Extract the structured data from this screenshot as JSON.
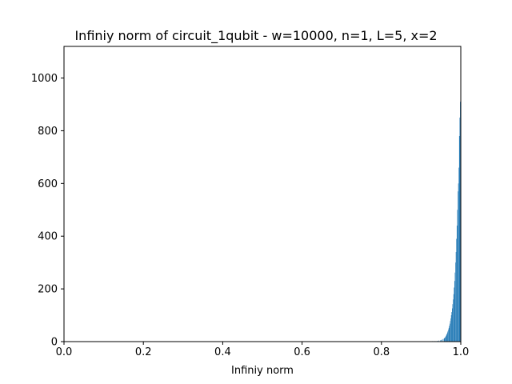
{
  "chart_data": {
    "type": "bar",
    "title": "Infiniy norm of circuit_1qubit - w=10000, n=1, L=5, x=2",
    "xlabel": "Infiniy norm",
    "ylabel": "",
    "xlim": [
      0.0,
      1.0
    ],
    "ylim": [
      0,
      1120
    ],
    "x_ticks": [
      "0.0",
      "0.2",
      "0.4",
      "0.6",
      "0.8",
      "1.0"
    ],
    "y_ticks": [
      "0",
      "200",
      "400",
      "600",
      "800",
      "1000"
    ],
    "grid": false,
    "legend": "none",
    "bar_color": "#1f77b4",
    "bin_width": 0.0012,
    "series": [
      {
        "x": [
          0.9232,
          0.9292,
          0.9352,
          0.9412,
          0.9448,
          0.9484,
          0.9508,
          0.9532,
          0.9556,
          0.958,
          0.9592,
          0.9604,
          0.9616,
          0.9628,
          0.964,
          0.9652,
          0.9664,
          0.9676,
          0.9688,
          0.97,
          0.9712,
          0.9724,
          0.9736,
          0.9748,
          0.976,
          0.9772,
          0.9784,
          0.9796,
          0.9808,
          0.982,
          0.9832,
          0.9844,
          0.9856,
          0.9868,
          0.988,
          0.9892,
          0.9904,
          0.9916,
          0.9928,
          0.994,
          0.9952,
          0.9964,
          0.9976,
          0.9988
        ],
        "values": [
          1,
          2,
          2,
          3,
          4,
          5,
          6,
          8,
          10,
          12,
          14,
          16,
          19,
          22,
          26,
          30,
          35,
          40,
          46,
          52,
          60,
          68,
          78,
          88,
          100,
          112,
          126,
          142,
          160,
          180,
          205,
          230,
          262,
          300,
          340,
          390,
          440,
          500,
          570,
          600,
          660,
          780,
          850,
          910
        ]
      }
    ]
  }
}
